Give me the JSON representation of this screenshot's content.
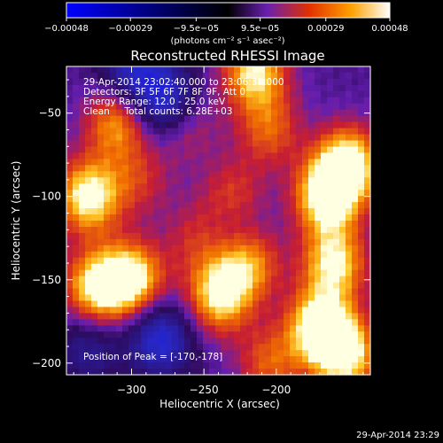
{
  "chart_data": {
    "type": "heatmap",
    "title": "Reconstructed RHESSI Image",
    "xlabel": "Heliocentric X (arcsec)",
    "ylabel": "Heliocentric Y (arcsec)",
    "xlim": [
      -345,
      -135
    ],
    "ylim": [
      -207,
      -22
    ],
    "xticks": [
      -300,
      -250,
      -200
    ],
    "yticks": [
      -50,
      -100,
      -150,
      -200
    ],
    "xtick_labels": [
      "−300",
      "−250",
      "−200"
    ],
    "ytick_labels": [
      "−50",
      "−100",
      "−150",
      "−200"
    ],
    "colorbar": {
      "range": [
        -0.00048,
        0.00048
      ],
      "ticks": [
        -0.00048,
        -0.00029,
        -9.5e-05,
        9.5e-05,
        0.00029,
        0.00048
      ],
      "tick_labels": [
        "−0.00048",
        "−0.00029",
        "−9.5e−05",
        "9.5e−05",
        "0.00029",
        "0.00048"
      ],
      "unit_label": "(photons cm⁻² s⁻¹ asec⁻²)"
    },
    "colors": {
      "neg_min": "#0000ff",
      "zero": "#000000",
      "low_pos": "#6a1fb0",
      "mid_pos": "#e03000",
      "high_pos": "#ffa000",
      "max_pos": "#ffffff"
    },
    "annotations": {
      "time_range": "29-Apr-2014 23:02:40.000 to 23:06:38.000",
      "detectors": "Detectors: 3F 5F 6F 7F 8F 9F, Att 0",
      "energy": "Energy Range: 12.0 - 25.0 keV",
      "clean": "Clean     Total counts: 6.28E+03",
      "peak": "Position of Peak = [-170,-178]"
    },
    "blobs": [
      {
        "x": -310,
        "y": -55,
        "amp": 0.7
      },
      {
        "x": -330,
        "y": -100,
        "amp": 0.95
      },
      {
        "x": -295,
        "y": -90,
        "amp": 0.35
      },
      {
        "x": -215,
        "y": -25,
        "amp": 0.85
      },
      {
        "x": -205,
        "y": -60,
        "amp": 0.5
      },
      {
        "x": -265,
        "y": -55,
        "amp": 0.55
      },
      {
        "x": -300,
        "y": -150,
        "amp": 0.95
      },
      {
        "x": -325,
        "y": -155,
        "amp": 0.85
      },
      {
        "x": -240,
        "y": -160,
        "amp": 0.85
      },
      {
        "x": -220,
        "y": -140,
        "amp": 0.7
      },
      {
        "x": -165,
        "y": -100,
        "amp": 1.0
      },
      {
        "x": -150,
        "y": -80,
        "amp": 0.95
      },
      {
        "x": -170,
        "y": -178,
        "amp": 1.0
      },
      {
        "x": -152,
        "y": -195,
        "amp": 0.9
      },
      {
        "x": -160,
        "y": -140,
        "amp": 0.85
      },
      {
        "x": -230,
        "y": -100,
        "amp": 0.45
      },
      {
        "x": -255,
        "y": -125,
        "amp": 0.35
      },
      {
        "x": -205,
        "y": -200,
        "amp": 0.5
      },
      {
        "x": -275,
        "y": -45,
        "amp": -0.9
      },
      {
        "x": -300,
        "y": -25,
        "amp": -0.6
      },
      {
        "x": -280,
        "y": -185,
        "amp": -0.7
      },
      {
        "x": -330,
        "y": -190,
        "amp": -0.4
      },
      {
        "x": -230,
        "y": -120,
        "amp": -0.25
      }
    ]
  },
  "footer": {
    "timestamp": "29-Apr-2014 23:29"
  }
}
